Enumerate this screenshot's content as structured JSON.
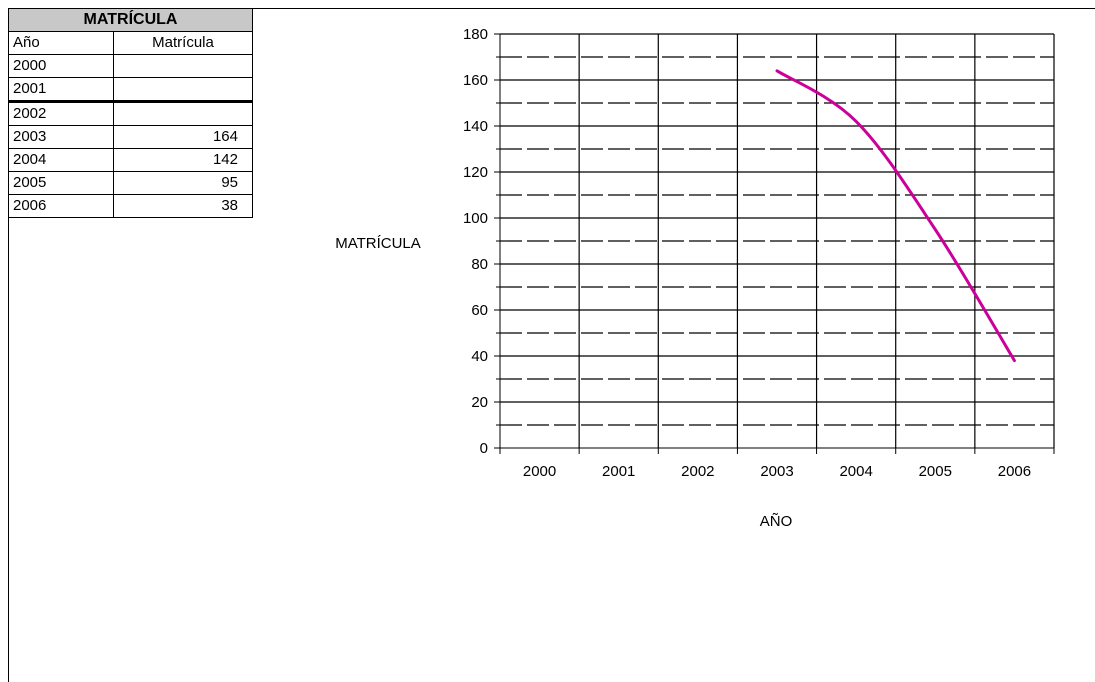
{
  "table": {
    "title": "MATRÍCULA",
    "col_year": "Año",
    "col_value": "Matrícula",
    "rows": [
      {
        "year": "2000",
        "value": ""
      },
      {
        "year": "2001",
        "value": ""
      },
      {
        "year": "2002",
        "value": ""
      },
      {
        "year": "2003",
        "value": "164"
      },
      {
        "year": "2004",
        "value": "142"
      },
      {
        "year": "2005",
        "value": "95"
      },
      {
        "year": "2006",
        "value": "38"
      }
    ]
  },
  "chart_data": {
    "type": "line",
    "title": "",
    "xlabel": "AÑO",
    "ylabel": "MATRÍCULA",
    "categories": [
      "2000",
      "2001",
      "2002",
      "2003",
      "2004",
      "2005",
      "2006"
    ],
    "series": [
      {
        "values": [
          null,
          null,
          null,
          164,
          142,
          95,
          38
        ],
        "color": "#cc0099"
      }
    ],
    "ylim": [
      0,
      180
    ],
    "yticks": [
      0,
      20,
      40,
      60,
      80,
      100,
      120,
      140,
      160,
      180
    ],
    "grid": true,
    "smooth": true
  }
}
